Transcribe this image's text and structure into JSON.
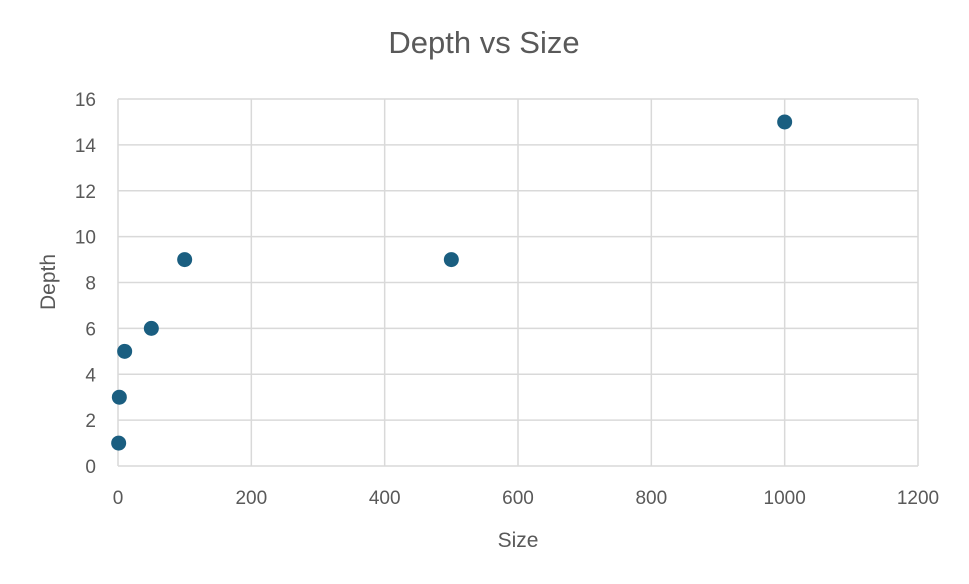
{
  "colors": {
    "marker": "#1a5e80",
    "gridline": "#d9d9d9",
    "text": "#595959",
    "background": "#ffffff"
  },
  "chart_data": {
    "type": "scatter",
    "title": "Depth vs Size",
    "xlabel": "Size",
    "ylabel": "Depth",
    "xlim": [
      0,
      1200
    ],
    "ylim": [
      0,
      16
    ],
    "x_ticks": [
      0,
      200,
      400,
      600,
      800,
      1000,
      1200
    ],
    "y_ticks": [
      0,
      2,
      4,
      6,
      8,
      10,
      12,
      14,
      16
    ],
    "grid": true,
    "legend": "none",
    "series": [
      {
        "x": [
          1,
          2,
          10,
          50,
          100,
          500,
          1000
        ],
        "y": [
          1,
          3,
          5,
          6,
          9,
          9,
          15
        ]
      }
    ]
  }
}
